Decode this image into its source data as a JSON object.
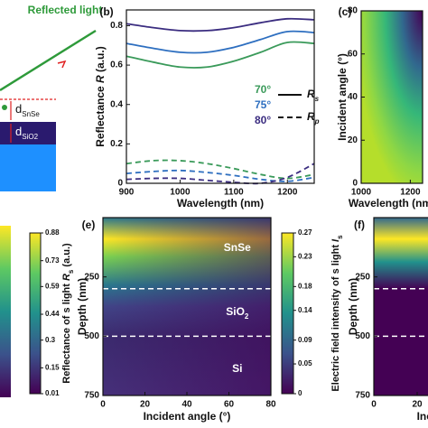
{
  "schematic": {
    "reflected_label": "Reflected light",
    "d_snse": {
      "text": "d",
      "sub": "SnSe"
    },
    "d_sio2": {
      "text": "d",
      "sub": "SiO2"
    }
  },
  "chart_data": [
    {
      "type": "line",
      "panel_label": "(b)",
      "xlabel": "Wavelength (nm)",
      "ylabel": {
        "text": "Reflectance ",
        "italic": "R",
        "after": " (a.u.)"
      },
      "x": [
        900,
        950,
        1000,
        1050,
        1100,
        1150,
        1200,
        1250
      ],
      "xlim": [
        900,
        1250
      ],
      "ylim": [
        0,
        0.88
      ],
      "xticks": [
        900,
        1000,
        1100,
        1200
      ],
      "yticks": [
        0,
        0.2,
        0.4,
        0.6,
        0.8
      ],
      "series": [
        {
          "color": "#3a9a5a",
          "dash": false,
          "values": [
            0.645,
            0.615,
            0.59,
            0.59,
            0.62,
            0.665,
            0.715,
            0.71
          ]
        },
        {
          "color": "#2e6fc0",
          "dash": false,
          "values": [
            0.71,
            0.685,
            0.665,
            0.665,
            0.69,
            0.73,
            0.77,
            0.765
          ]
        },
        {
          "color": "#3b2d80",
          "dash": false,
          "values": [
            0.81,
            0.79,
            0.775,
            0.775,
            0.79,
            0.815,
            0.835,
            0.83
          ]
        },
        {
          "color": "#3a9a5a",
          "dash": true,
          "values": [
            0.1,
            0.115,
            0.115,
            0.1,
            0.075,
            0.045,
            0.025,
            0.045
          ]
        },
        {
          "color": "#2e6fc0",
          "dash": true,
          "values": [
            0.05,
            0.06,
            0.065,
            0.055,
            0.04,
            0.02,
            0.01,
            0.03
          ]
        },
        {
          "color": "#3b2d80",
          "dash": true,
          "values": [
            0.02,
            0.025,
            0.025,
            0.015,
            0.005,
            0.0,
            0.03,
            0.1
          ]
        }
      ],
      "legend": {
        "angles": [
          {
            "label": "70°",
            "color": "#3a9a5a"
          },
          {
            "label": "75°",
            "color": "#2e6fc0"
          },
          {
            "label": "80°",
            "color": "#3b2d80"
          }
        ],
        "styles": [
          {
            "label": "R",
            "sub": "s",
            "dash": false
          },
          {
            "label": "R",
            "sub": "p",
            "dash": true
          }
        ]
      }
    },
    {
      "type": "heatmap",
      "panel_label": "(c)",
      "xlabel": "Wavelength (nm)",
      "ylabel": "Incident angle (°)",
      "xlim": [
        1000,
        1250
      ],
      "ylim": [
        0,
        80
      ],
      "xticks": [
        1000,
        1200
      ],
      "yticks": [
        0,
        20,
        40,
        60,
        80
      ],
      "style": "angle"
    },
    {
      "type": "colorbar",
      "label": {
        "text": "Reflectance of s light ",
        "italic": "R",
        "sub": "s",
        "after": " (a.u.)"
      },
      "lim": [
        0.01,
        0.88
      ],
      "ticks": [
        0.01,
        0.15,
        0.3,
        0.44,
        0.59,
        0.73,
        0.88
      ]
    },
    {
      "type": "heatmap",
      "panel_label": "(e)",
      "xlabel": "Incident angle (°)",
      "ylabel": "Depth (nm)",
      "xlim": [
        0,
        80
      ],
      "ylim": [
        750,
        0
      ],
      "xticks": [
        0,
        20,
        40,
        60,
        80
      ],
      "yticks": [
        250,
        500,
        750
      ],
      "boundaries": [
        300,
        500
      ],
      "style": "depth",
      "annotations": [
        {
          "text": "SnSe"
        },
        {
          "text": "SiO",
          "sub": "2"
        },
        {
          "text": "Si"
        }
      ]
    },
    {
      "type": "colorbar",
      "label": {
        "text": "Electric field intensity of s light ",
        "italic": "I",
        "sub": "s"
      },
      "lim": [
        0,
        0.27
      ],
      "ticks": [
        0,
        0.05,
        0.09,
        0.14,
        0.18,
        0.23,
        0.27
      ]
    },
    {
      "type": "heatmap",
      "panel_label": "(f)",
      "xlabel": "Incident angle (°)",
      "ylabel": "Depth (nm)",
      "xlim": [
        0,
        80
      ],
      "ylim": [
        750,
        0
      ],
      "xticks": [
        0,
        20
      ],
      "yticks": [
        250,
        500,
        750
      ],
      "boundaries": [
        300,
        500
      ],
      "style": "depth2"
    }
  ]
}
